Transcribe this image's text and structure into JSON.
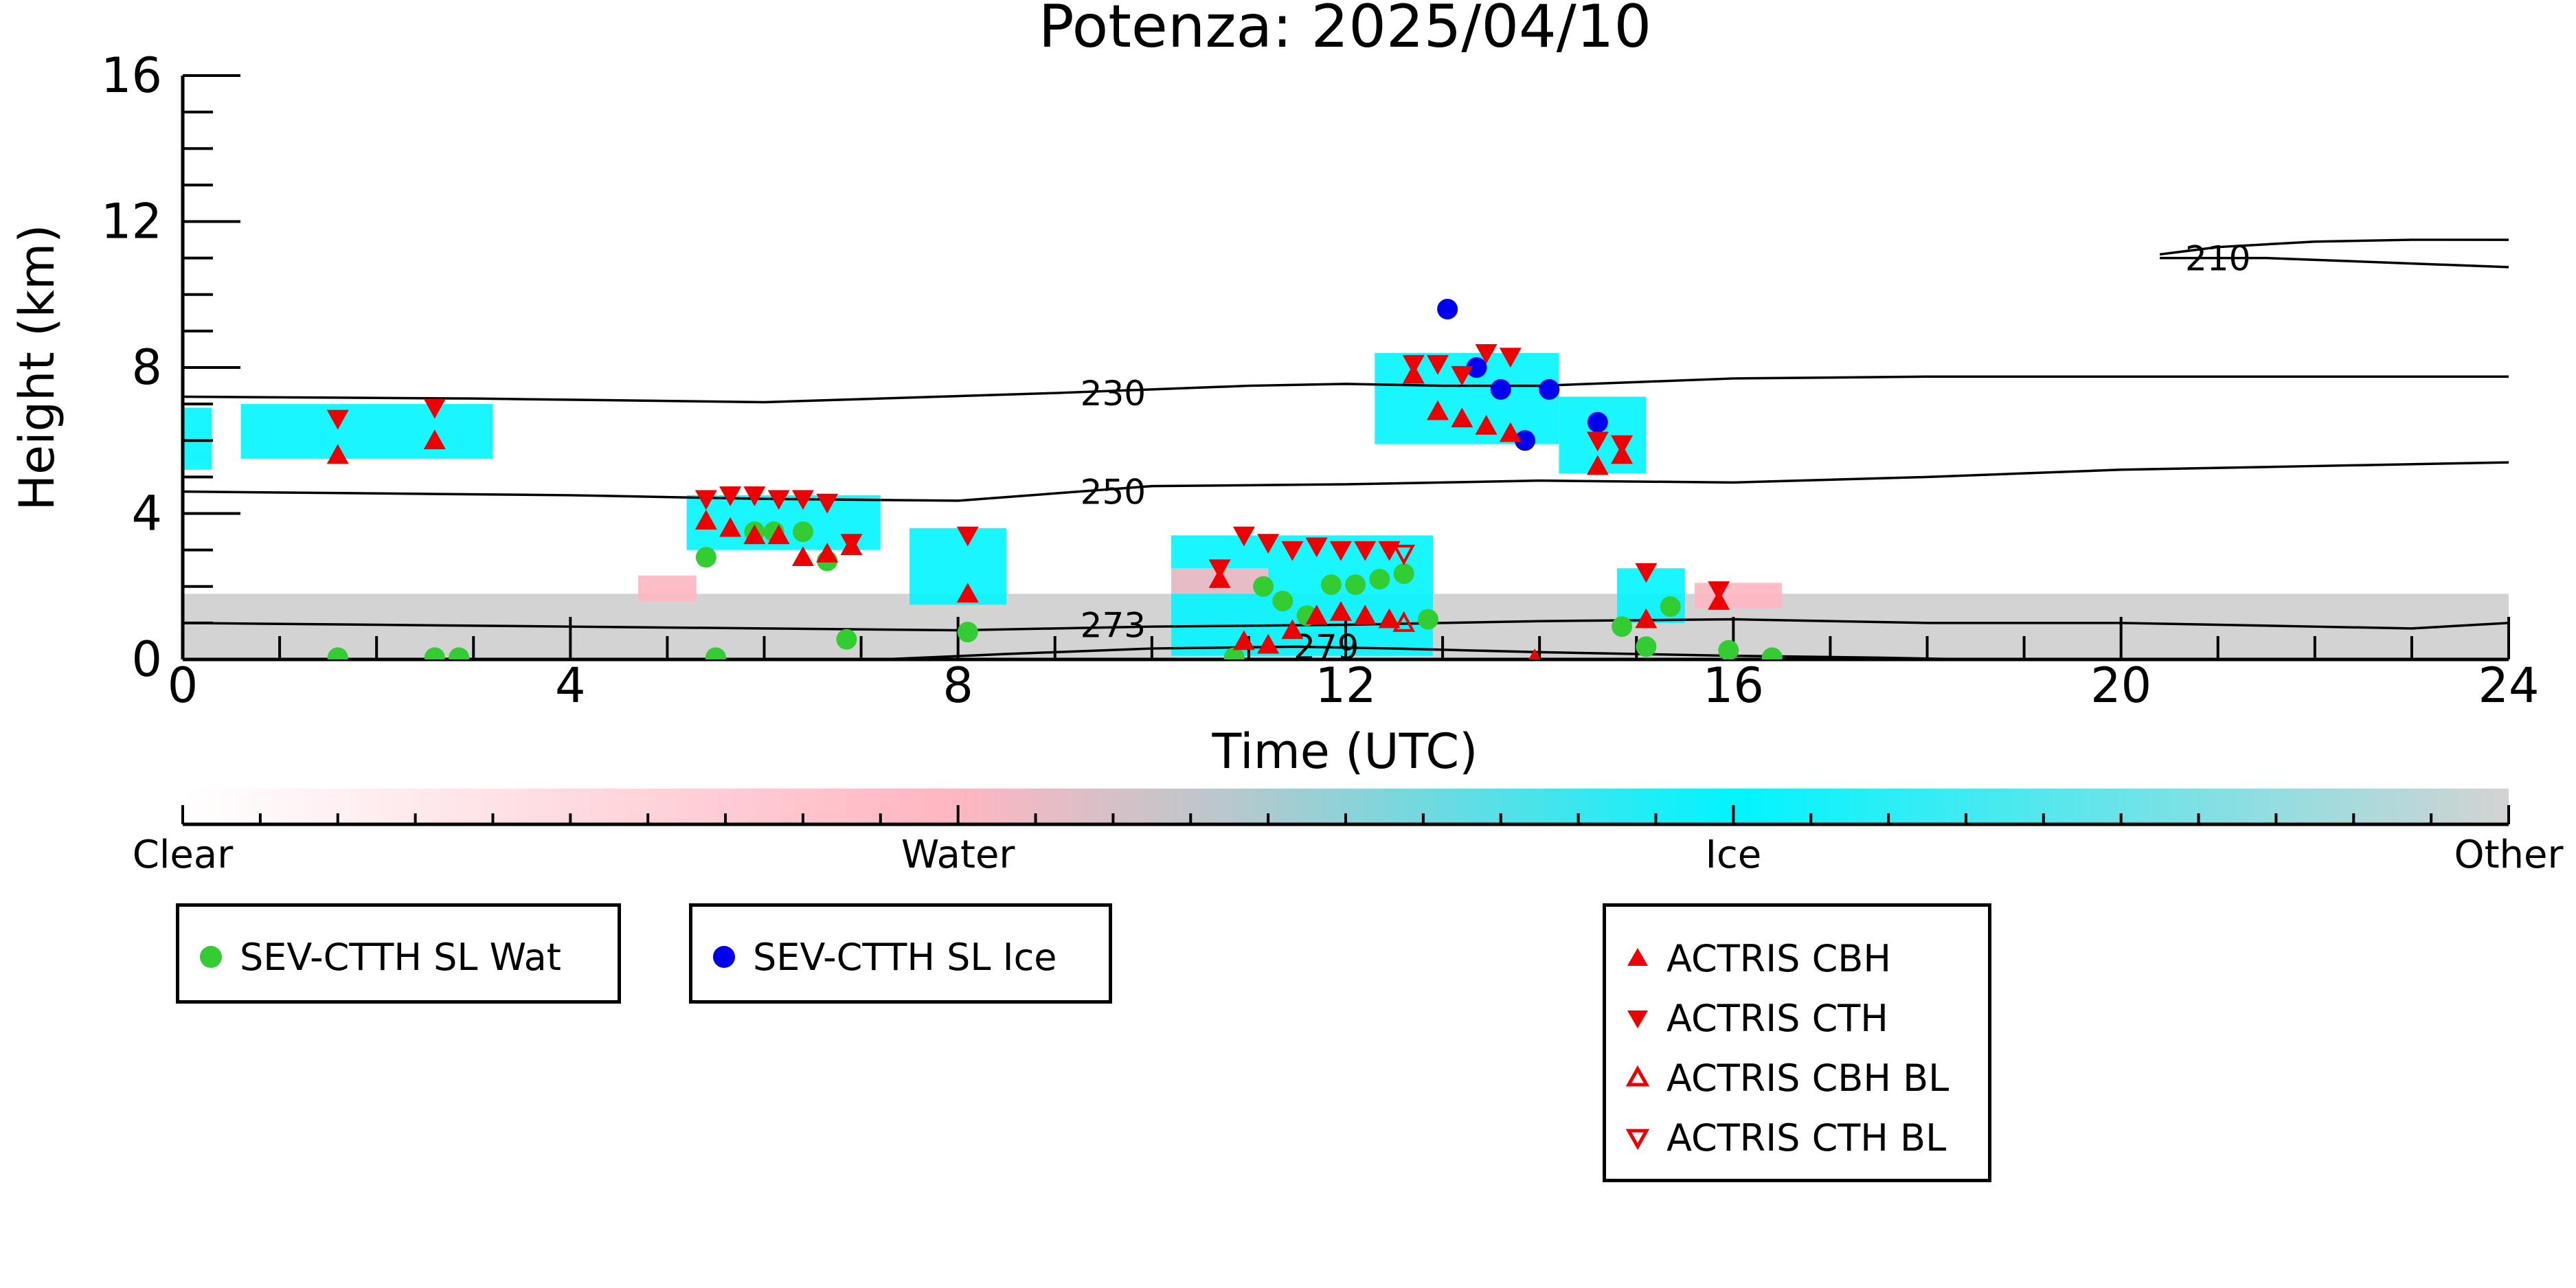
{
  "chart_data": {
    "type": "scatter",
    "title": "Potenza: 2025/04/10",
    "xlabel": "Time (UTC)",
    "ylabel": "Height (km)",
    "xlim": [
      0,
      24
    ],
    "ylim": [
      0,
      16
    ],
    "xticks": [
      0,
      4,
      8,
      12,
      16,
      20,
      24
    ],
    "xtick_labels": [
      "0",
      "4",
      "8",
      "12",
      "16",
      "20",
      "24"
    ],
    "yticks": [
      0,
      4,
      8,
      12,
      16
    ],
    "ytick_labels": [
      "0",
      "4",
      "8",
      "12",
      "16"
    ],
    "background_field": {
      "name": "cloud phase",
      "colorbar": {
        "labels": [
          "Clear",
          "Water",
          "Ice",
          "Other"
        ],
        "colors": [
          "#ffffff",
          "#ffb6c1",
          "#00f5ff",
          "#d3d3d3"
        ]
      },
      "regions": [
        {
          "phase": "Other",
          "x": [
            0,
            24
          ],
          "y": [
            0,
            1.8
          ]
        },
        {
          "phase": "Ice",
          "x": [
            0,
            0.3
          ],
          "y": [
            5.2,
            6.9
          ]
        },
        {
          "phase": "Ice",
          "x": [
            0.6,
            3.2
          ],
          "y": [
            5.5,
            7.0
          ]
        },
        {
          "phase": "Ice",
          "x": [
            5.2,
            7.2
          ],
          "y": [
            3.0,
            4.5
          ]
        },
        {
          "phase": "Ice",
          "x": [
            7.5,
            8.5
          ],
          "y": [
            1.5,
            3.6
          ]
        },
        {
          "phase": "Ice",
          "x": [
            10.2,
            12.9
          ],
          "y": [
            0.1,
            3.4
          ]
        },
        {
          "phase": "Ice",
          "x": [
            12.3,
            14.2
          ],
          "y": [
            5.9,
            8.4
          ]
        },
        {
          "phase": "Ice",
          "x": [
            14.2,
            15.1
          ],
          "y": [
            5.1,
            7.2
          ]
        },
        {
          "phase": "Ice",
          "x": [
            14.8,
            15.5
          ],
          "y": [
            1.0,
            2.5
          ]
        },
        {
          "phase": "Water",
          "x": [
            4.7,
            5.3
          ],
          "y": [
            1.6,
            2.3
          ]
        },
        {
          "phase": "Water",
          "x": [
            10.2,
            11.2
          ],
          "y": [
            1.8,
            2.5
          ]
        },
        {
          "phase": "Water",
          "x": [
            15.6,
            16.5
          ],
          "y": [
            1.4,
            2.1
          ]
        }
      ]
    },
    "contours": [
      {
        "level": "210",
        "x": [
          20.4,
          21.0,
          22.0,
          23.0,
          24.0
        ],
        "y": [
          11.1,
          11.3,
          11.45,
          11.5,
          11.5
        ]
      },
      {
        "level": "210",
        "x": [
          20.4,
          21.5,
          23.0,
          24.0
        ],
        "y": [
          11.0,
          11.0,
          10.85,
          10.75
        ]
      },
      {
        "level": "230",
        "x": [
          0,
          3,
          6,
          9,
          11,
          12,
          13,
          14,
          15,
          16,
          18,
          20,
          22,
          24
        ],
        "y": [
          7.2,
          7.15,
          7.05,
          7.3,
          7.5,
          7.55,
          7.5,
          7.5,
          7.6,
          7.7,
          7.75,
          7.75,
          7.75,
          7.75
        ]
      },
      {
        "level": "250",
        "x": [
          0,
          2,
          4,
          6,
          8,
          10,
          12,
          14,
          16,
          18,
          20,
          22,
          24
        ],
        "y": [
          4.6,
          4.55,
          4.5,
          4.4,
          4.35,
          4.75,
          4.8,
          4.9,
          4.85,
          5.0,
          5.2,
          5.3,
          5.4
        ]
      },
      {
        "level": "273",
        "x": [
          0,
          2,
          4,
          6,
          8,
          10,
          12,
          14,
          16,
          18,
          20,
          22,
          23,
          24
        ],
        "y": [
          1.0,
          0.95,
          0.9,
          0.85,
          0.8,
          0.9,
          0.95,
          1.05,
          1.1,
          1.0,
          1.0,
          0.9,
          0.85,
          1.0
        ]
      },
      {
        "level": "279",
        "x": [
          7.2,
          8.5,
          10,
          11.5,
          12.5,
          14,
          16,
          17.5,
          18.5
        ],
        "y": [
          0.0,
          0.15,
          0.3,
          0.35,
          0.3,
          0.2,
          0.1,
          0.05,
          0.0
        ]
      }
    ],
    "contour_labels": [
      {
        "text": "210",
        "x": 21.0,
        "y": 11.0
      },
      {
        "text": "230",
        "x": 9.6,
        "y": 7.3
      },
      {
        "text": "250",
        "x": 9.6,
        "y": 4.6
      },
      {
        "text": "273",
        "x": 9.6,
        "y": 0.95
      },
      {
        "text": "279",
        "x": 11.8,
        "y": 0.35
      }
    ],
    "series": [
      {
        "name": "SEV-CTTH SL Wat",
        "marker": "circle",
        "color": "#33cc33",
        "x": [
          1.6,
          2.6,
          2.85,
          5.4,
          5.5,
          5.9,
          6.1,
          6.4,
          6.65,
          6.85,
          8.1,
          10.85,
          11.15,
          11.35,
          11.6,
          11.85,
          12.1,
          12.35,
          12.6,
          12.85,
          14.85,
          15.1,
          15.35,
          15.95,
          16.4
        ],
        "y": [
          0.05,
          0.05,
          0.05,
          2.8,
          0.05,
          3.5,
          3.5,
          3.5,
          2.7,
          0.55,
          0.75,
          0.05,
          2.0,
          1.6,
          1.2,
          2.05,
          2.05,
          2.2,
          2.35,
          1.1,
          0.9,
          0.35,
          1.45,
          0.25,
          0.05
        ]
      },
      {
        "name": "SEV-CTTH SL Ice",
        "marker": "circle",
        "color": "#0000ee",
        "x": [
          13.05,
          13.35,
          13.6,
          13.85,
          14.1,
          14.6
        ],
        "y": [
          9.6,
          8.0,
          7.4,
          6.0,
          7.4,
          6.5
        ]
      },
      {
        "name": "ACTRIS CBH",
        "marker": "triangle-up",
        "color": "#ee0000",
        "x": [
          1.6,
          2.6,
          5.4,
          5.65,
          5.9,
          6.15,
          6.4,
          6.65,
          6.9,
          8.1,
          10.7,
          10.95,
          11.2,
          11.45,
          11.7,
          11.95,
          12.2,
          12.45,
          12.7,
          12.95,
          13.2,
          13.45,
          13.7,
          13.95,
          14.6,
          14.85,
          15.1,
          15.85
        ],
        "y": [
          5.6,
          6.0,
          3.8,
          3.6,
          3.4,
          3.4,
          2.8,
          2.9,
          3.1,
          1.8,
          2.2,
          0.5,
          0.4,
          0.8,
          1.2,
          1.3,
          1.2,
          1.1,
          7.8,
          6.8,
          6.6,
          6.4,
          6.2,
          0.0,
          5.3,
          5.6,
          1.1,
          1.6
        ]
      },
      {
        "name": "ACTRIS CTH",
        "marker": "triangle-down",
        "color": "#ee0000",
        "x": [
          1.6,
          2.6,
          5.4,
          5.65,
          5.9,
          6.15,
          6.4,
          6.65,
          6.9,
          8.1,
          10.7,
          10.95,
          11.2,
          11.45,
          11.7,
          11.95,
          12.2,
          12.45,
          12.7,
          12.95,
          13.2,
          13.45,
          13.7,
          14.6,
          14.85,
          15.1,
          15.85
        ],
        "y": [
          6.6,
          6.9,
          4.4,
          4.5,
          4.5,
          4.4,
          4.4,
          4.3,
          3.2,
          3.4,
          2.5,
          3.4,
          3.2,
          3.0,
          3.1,
          3.0,
          3.0,
          3.0,
          8.1,
          8.1,
          7.8,
          8.4,
          8.3,
          6.0,
          5.9,
          2.4,
          1.9
        ]
      },
      {
        "name": "ACTRIS CBH BL",
        "marker": "triangle-up-open",
        "color": "#ee0000",
        "x": [
          12.6
        ],
        "y": [
          1.0
        ]
      },
      {
        "name": "ACTRIS CTH BL",
        "marker": "triangle-down-open",
        "color": "#ee0000",
        "x": [
          12.6
        ],
        "y": [
          2.9
        ]
      }
    ],
    "legend": [
      {
        "entries": [
          "SEV-CTTH SL Wat"
        ],
        "placement": "bottom-left"
      },
      {
        "entries": [
          "SEV-CTTH SL Ice"
        ],
        "placement": "bottom-left"
      },
      {
        "entries": [
          "ACTRIS CBH",
          "ACTRIS CTH",
          "ACTRIS CBH BL",
          "ACTRIS CTH BL"
        ],
        "placement": "bottom-center"
      }
    ]
  }
}
